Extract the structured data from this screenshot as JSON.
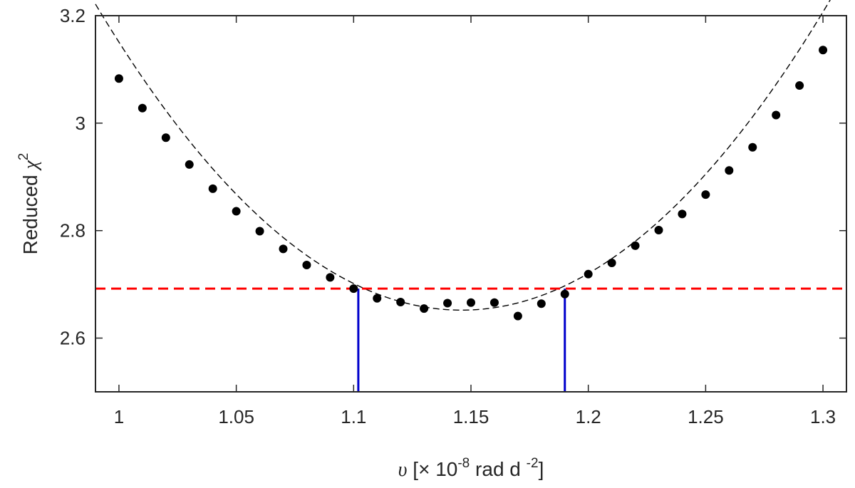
{
  "chart_data": {
    "type": "scatter",
    "xlabel": {
      "symbol": "υ",
      "text_before": " [× 10",
      "exp1": "-8",
      "middle": " rad d ",
      "exp2": "-2",
      "close": "]"
    },
    "ylabel": {
      "text": "Reduced ",
      "symbol": "χ",
      "exp": "2"
    },
    "xlim": [
      0.99,
      1.31
    ],
    "ylim": [
      2.5,
      3.2
    ],
    "xticks": [
      1.0,
      1.05,
      1.1,
      1.15,
      1.2,
      1.25,
      1.3
    ],
    "xtick_labels": [
      "1",
      "1.05",
      "1.1",
      "1.15",
      "1.2",
      "1.25",
      "1.3"
    ],
    "yticks": [
      2.6,
      2.8,
      3.0,
      3.2
    ],
    "ytick_labels": [
      "2.6",
      "2.8",
      "3",
      "3.2"
    ],
    "grid": false,
    "series": [
      {
        "type": "scatter",
        "color": "#000000",
        "x": [
          1.0,
          1.01,
          1.02,
          1.03,
          1.04,
          1.05,
          1.06,
          1.07,
          1.08,
          1.09,
          1.1,
          1.11,
          1.12,
          1.13,
          1.14,
          1.15,
          1.16,
          1.17,
          1.18,
          1.19,
          1.2,
          1.21,
          1.22,
          1.23,
          1.24,
          1.25,
          1.26,
          1.27,
          1.28,
          1.29,
          1.3
        ],
        "y": [
          3.083,
          3.028,
          2.973,
          2.923,
          2.878,
          2.836,
          2.799,
          2.766,
          2.736,
          2.713,
          2.692,
          2.674,
          2.667,
          2.655,
          2.665,
          2.666,
          2.666,
          2.641,
          2.664,
          2.682,
          2.719,
          2.74,
          2.772,
          2.801,
          2.831,
          2.867,
          2.912,
          2.955,
          3.015,
          3.07,
          3.136
        ]
      },
      {
        "type": "line",
        "style": "dashed",
        "color": "#000000",
        "fit": "quadratic",
        "vertex_x": 1.146,
        "vertex_y": 2.652,
        "curvature": 23.4
      },
      {
        "type": "hline",
        "style": "dashed",
        "color": "#ff0000",
        "y": 2.692
      },
      {
        "type": "vline",
        "color": "#0000cc",
        "x": 1.102,
        "y_top": 2.692
      },
      {
        "type": "vline",
        "color": "#0000cc",
        "x": 1.19,
        "y_top": 2.692
      }
    ]
  }
}
